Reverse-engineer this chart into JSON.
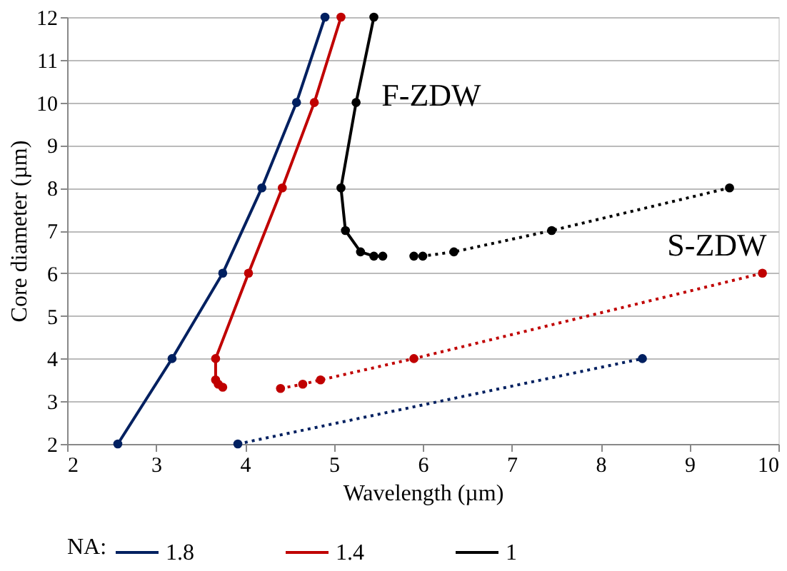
{
  "chart_data": {
    "type": "line",
    "xlabel": "Wavelength (µm)",
    "ylabel": "Core diameter (µm)",
    "legend_title": "NA:",
    "xlim": [
      2,
      10
    ],
    "xticks": [
      2,
      3,
      4,
      5,
      6,
      7,
      8,
      9,
      10
    ],
    "ylim": [
      2,
      12
    ],
    "yticks": [
      2,
      3,
      4,
      5,
      6,
      7,
      8,
      9,
      10,
      11,
      12
    ],
    "grid": "y",
    "legend": "bottom",
    "marker": "circle",
    "series": [
      {
        "name": "1.8",
        "color": "#002060",
        "line_style": "solid",
        "x": [
          2.57,
          3.18,
          3.75,
          4.19,
          4.58,
          4.9
        ],
        "values": [
          2,
          4,
          6,
          8,
          10,
          12
        ]
      },
      {
        "name": "1.4",
        "color": "#c00000",
        "line_style": "solid",
        "x": [
          3.75,
          3.7,
          3.67,
          3.67,
          4.04,
          4.42,
          4.78,
          5.08
        ],
        "values": [
          3.33,
          3.4,
          3.5,
          4,
          6,
          8,
          10,
          12
        ]
      },
      {
        "name": "1",
        "color": "#000000",
        "line_style": "solid",
        "x": [
          5.55,
          5.45,
          5.3,
          5.13,
          5.08,
          5.25,
          5.45
        ],
        "values": [
          6.4,
          6.4,
          6.5,
          7,
          8,
          10,
          12
        ]
      },
      {
        "color": "#002060",
        "line_style": "dotted",
        "x": [
          3.92,
          8.47
        ],
        "values": [
          2,
          4
        ]
      },
      {
        "color": "#c00000",
        "line_style": "dotted",
        "x": [
          4.4,
          4.65,
          4.85,
          5.9,
          9.82
        ],
        "values": [
          3.3,
          3.4,
          3.5,
          4,
          6
        ]
      },
      {
        "color": "#000000",
        "line_style": "dotted",
        "x": [
          5.9,
          6.0,
          6.35,
          7.45,
          9.45
        ],
        "values": [
          6.4,
          6.4,
          6.5,
          7,
          8
        ]
      }
    ],
    "annotations": [
      "F-ZDW",
      "S-ZDW"
    ]
  }
}
